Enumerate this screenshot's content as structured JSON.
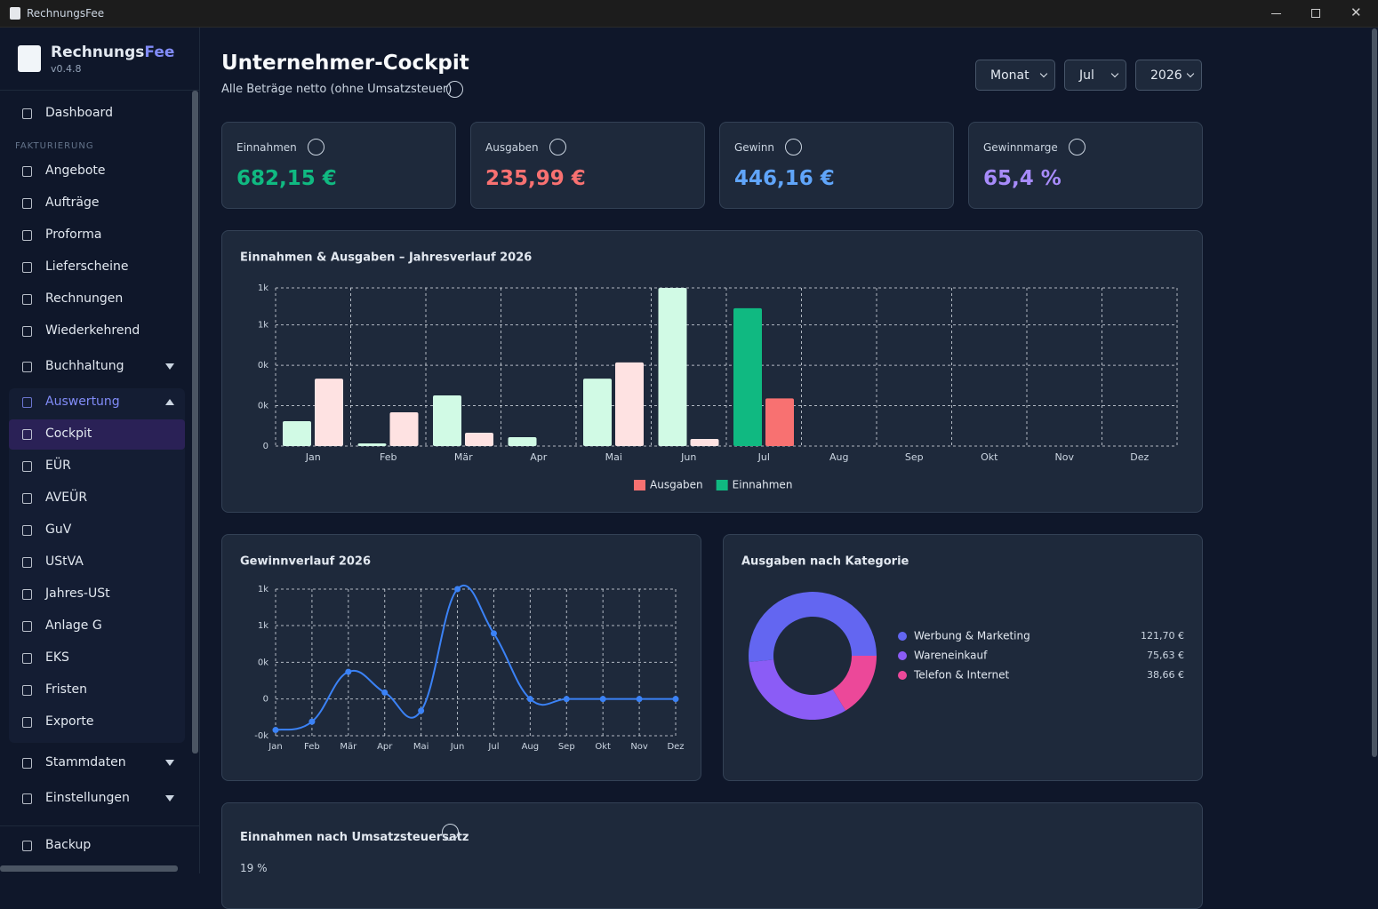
{
  "window": {
    "title": "RechnungsFee"
  },
  "sidebar": {
    "brand": "Rechnungs",
    "brand_accent": "Fee",
    "version": "v0.4.8",
    "section_label": "FAKTURIERUNG",
    "items": [
      "Dashboard",
      "Angebote",
      "Aufträge",
      "Proforma",
      "Lieferscheine",
      "Rechnungen",
      "Wiederkehrend",
      "Buchhaltung",
      "Auswertung",
      "Cockpit",
      "EÜR",
      "AVEÜR",
      "GuV",
      "UStVA",
      "Jahres-USt",
      "Anlage G",
      "EKS",
      "Fristen",
      "Exporte",
      "Stammdaten",
      "Einstellungen",
      "Backup"
    ]
  },
  "header": {
    "title": "Unternehmer-Cockpit",
    "subtitle": "Alle Beträge netto (ohne Umsatzsteuer)"
  },
  "filters": [
    "Monat",
    "Jul",
    "2026"
  ],
  "kpis": [
    {
      "label": "Einnahmen",
      "value": "682,15 €",
      "color": "#10b981"
    },
    {
      "label": "Ausgaben",
      "value": "235,99 €",
      "color": "#f87171"
    },
    {
      "label": "Gewinn",
      "value": "446,16 €",
      "color": "#60a5fa"
    },
    {
      "label": "Gewinnmarge",
      "value": "65,4 %",
      "color": "#a78bfa"
    }
  ],
  "chart_data": [
    {
      "type": "bar",
      "title": "Einnahmen & Ausgaben – Jahresverlauf 2026",
      "categories": [
        "Jan",
        "Feb",
        "Mär",
        "Apr",
        "Mai",
        "Jun",
        "Jul",
        "Aug",
        "Sep",
        "Okt",
        "Nov",
        "Dez"
      ],
      "series": [
        {
          "name": "Einnahmen",
          "color": "#10b981",
          "muted_color": "#d1fae5",
          "values": [
            123,
            13,
            251,
            44,
            334,
            783,
            682.15,
            0,
            0,
            0,
            0,
            0
          ]
        },
        {
          "name": "Ausgaben",
          "color": "#f87171",
          "muted_color": "#fee2e2",
          "values": [
            334,
            167,
            66,
            0,
            414,
            35,
            235.99,
            0,
            0,
            0,
            0,
            0
          ]
        }
      ],
      "ylim": [
        0,
        783
      ],
      "yticks": [
        0,
        {
          "value": 200,
          "label": "0k"
        },
        {
          "value": 400,
          "label": "0k"
        },
        {
          "value": 600,
          "label": "1k"
        },
        {
          "value": 783,
          "label": "1k"
        }
      ],
      "grid": true
    },
    {
      "type": "line",
      "title": "Gewinnverlauf 2026",
      "categories": [
        "Jan",
        "Feb",
        "Mär",
        "Apr",
        "Mai",
        "Jun",
        "Jul",
        "Aug",
        "Sep",
        "Okt",
        "Nov",
        "Dez"
      ],
      "values": [
        -211,
        -154,
        185,
        44,
        -80,
        748,
        446.16,
        0,
        0,
        0,
        0,
        0
      ],
      "color": "#3b82f6",
      "ylim": [
        -250,
        748
      ],
      "yticks": [
        {
          "value": -250,
          "label": "-0k"
        },
        0,
        {
          "value": 250,
          "label": "0k"
        },
        {
          "value": 500,
          "label": "1k"
        },
        {
          "value": 748,
          "label": "1k"
        }
      ],
      "grid": true
    },
    {
      "type": "pie",
      "title": "Ausgaben nach Kategorie",
      "categories": [
        "Werbung & Marketing",
        "Wareneinkauf",
        "Telefon & Internet"
      ],
      "values": [
        121.7,
        75.63,
        38.66
      ],
      "value_labels": [
        "121,70 €",
        "75,63 €",
        "38,66 €"
      ],
      "colors": [
        "#6366f1",
        "#8b5cf6",
        "#ec4899"
      ]
    }
  ],
  "vat_section": {
    "title": "Einnahmen nach Umsatzsteuersatz",
    "first_rate": "19 %"
  }
}
